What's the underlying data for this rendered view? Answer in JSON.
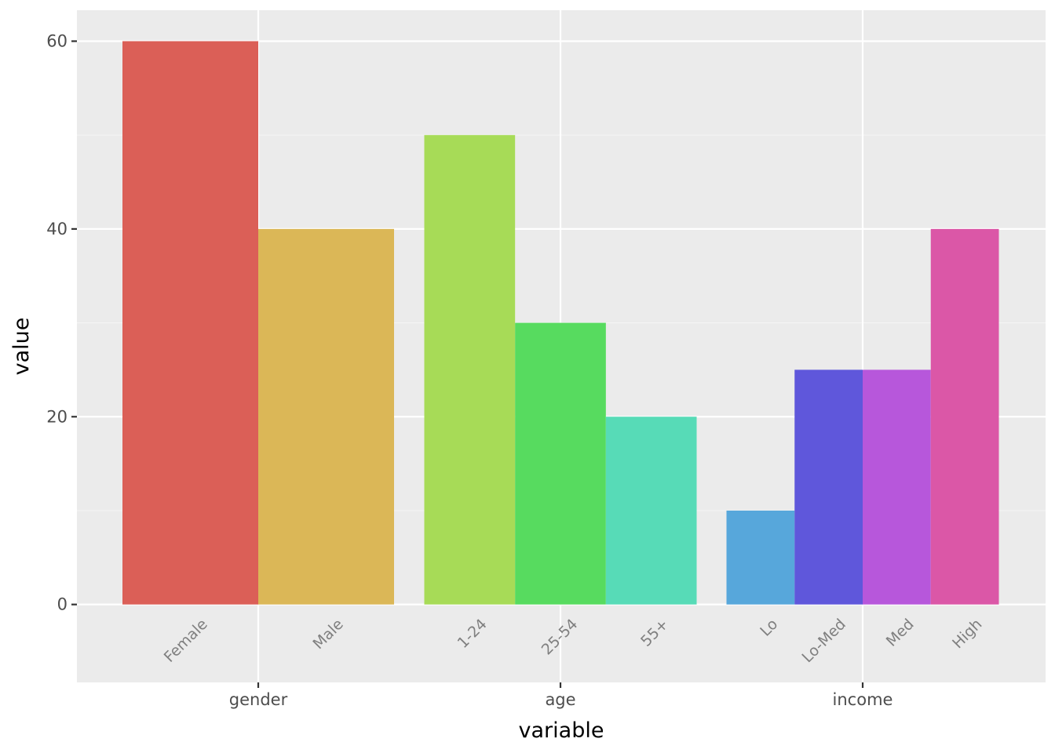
{
  "chart_data": {
    "type": "bar",
    "xlabel": "variable",
    "ylabel": "value",
    "ylim": [
      -8.3,
      63.3
    ],
    "yticks": [
      0,
      20,
      40,
      60
    ],
    "grid": true,
    "legend": "none",
    "groups": [
      {
        "name": "gender",
        "bars": [
          {
            "label": "Female",
            "value": 60,
            "color": "#DB5F57"
          },
          {
            "label": "Male",
            "value": 40,
            "color": "#DBB757"
          }
        ]
      },
      {
        "name": "age",
        "bars": [
          {
            "label": "1-24",
            "value": 50,
            "color": "#A7DB57"
          },
          {
            "label": "25-54",
            "value": 30,
            "color": "#57DB5F"
          },
          {
            "label": "55+",
            "value": 20,
            "color": "#57DBB7"
          }
        ]
      },
      {
        "name": "income",
        "bars": [
          {
            "label": "Lo",
            "value": 10,
            "color": "#57A7DB"
          },
          {
            "label": "Lo-Med",
            "value": 25,
            "color": "#5F57DB"
          },
          {
            "label": "Med",
            "value": 25,
            "color": "#B757DB"
          },
          {
            "label": "High",
            "value": 40,
            "color": "#DB57A7"
          }
        ]
      }
    ]
  },
  "colors": {
    "panel_background": "#EBEBEB",
    "grid_major": "#FFFFFF",
    "grid_minor": "#F4F4F4"
  }
}
